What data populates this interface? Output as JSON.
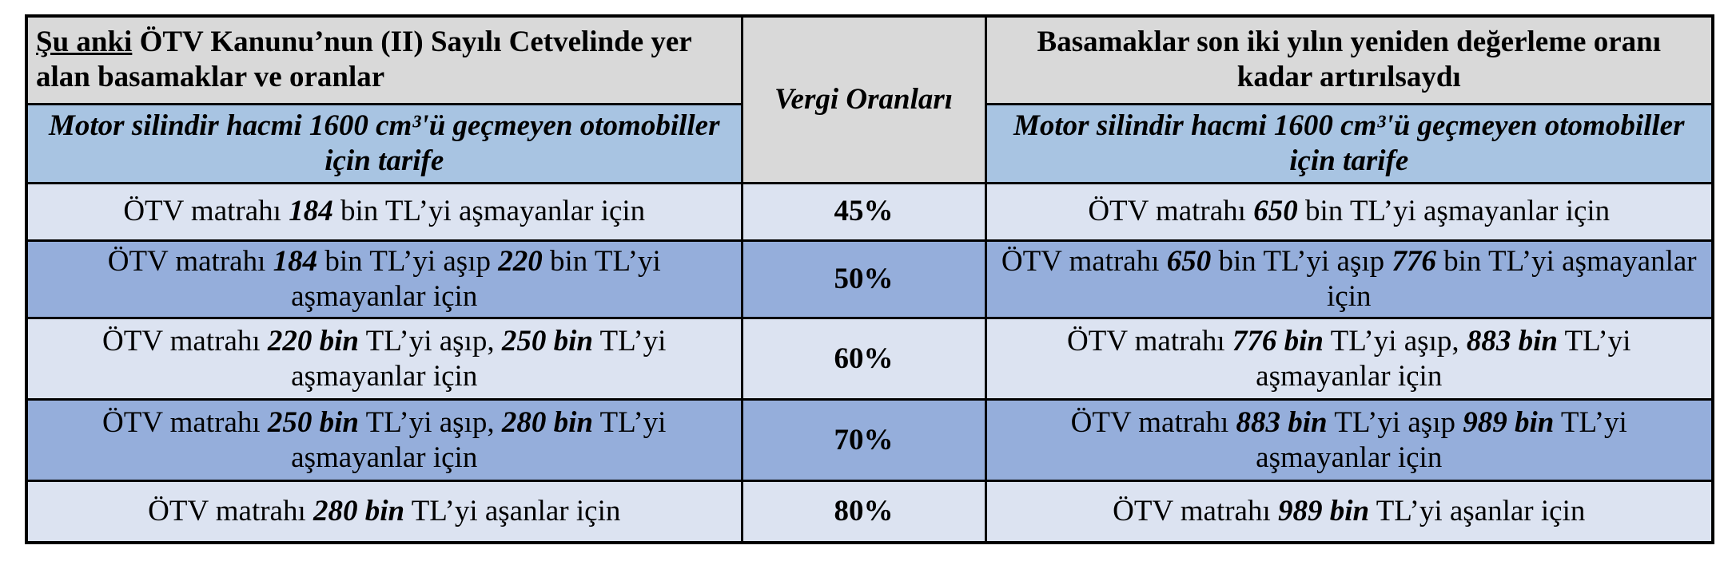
{
  "header": {
    "left_underlined": "Şu anki",
    "left_rest": " ÖTV Kanunu’nun (II) Sayılı Cetvelinde yer alan basamaklar ve oranlar",
    "middle": "Vergi Oranları",
    "right": "Basamaklar son iki yılın yeniden değerleme oranı kadar artırılsaydı"
  },
  "subheader": {
    "left": "Motor silindir hacmi 1600 cm³'ü geçmeyen otomobiller için tarife",
    "right": "Motor silindir hacmi 1600 cm³'ü geçmeyen otomobiller için tarife"
  },
  "rows": [
    {
      "left": {
        "p1": "ÖTV matrahı ",
        "b1": "184",
        "p2": " bin TL’yi aşmayanlar için",
        "b2": "",
        "p3": ""
      },
      "rate": "45%",
      "right": {
        "p1": "ÖTV matrahı ",
        "b1": "650",
        "p2": " bin TL’yi aşmayanlar için",
        "b2": "",
        "p3": ""
      }
    },
    {
      "left": {
        "p1": "ÖTV matrahı ",
        "b1": "184",
        "p2": " bin TL’yi aşıp ",
        "b2": "220",
        "p3": " bin TL’yi aşmayanlar için"
      },
      "rate": "50%",
      "right": {
        "p1": "ÖTV matrahı ",
        "b1": "650",
        "p2": " bin TL’yi aşıp ",
        "b2": "776",
        "p3": " bin TL’yi aşmayanlar için"
      }
    },
    {
      "left": {
        "p1": "ÖTV matrahı ",
        "b1": "220 bin",
        "p2": " TL’yi aşıp, ",
        "b2": "250 bin",
        "p3": " TL’yi aşmayanlar için"
      },
      "rate": "60%",
      "right": {
        "p1": "ÖTV matrahı ",
        "b1": "776 bin",
        "p2": " TL’yi aşıp, ",
        "b2": "883 bin",
        "p3": " TL’yi aşmayanlar için"
      }
    },
    {
      "left": {
        "p1": "ÖTV matrahı ",
        "b1": "250 bin",
        "p2": " TL’yi aşıp, ",
        "b2": "280 bin",
        "p3": " TL’yi aşmayanlar için"
      },
      "rate": "70%",
      "right": {
        "p1": "ÖTV matrahı ",
        "b1": "883 bin",
        "p2": " TL’yi aşıp ",
        "b2": "989 bin",
        "p3": " TL’yi aşmayanlar için"
      }
    },
    {
      "left": {
        "p1": "ÖTV matrahı ",
        "b1": "280 bin",
        "p2": " TL’yi aşanlar için",
        "b2": "",
        "p3": ""
      },
      "rate": "80%",
      "right": {
        "p1": "ÖTV matrahı ",
        "b1": "989 bin",
        "p2": " TL’yi aşanlar için",
        "b2": "",
        "p3": ""
      }
    }
  ],
  "colors": {
    "header_gray": "#d9d9d9",
    "subheader_blue": "#a8c4e2",
    "row_light": "#dce3f1",
    "row_dark": "#95aedb",
    "border": "#000000"
  }
}
